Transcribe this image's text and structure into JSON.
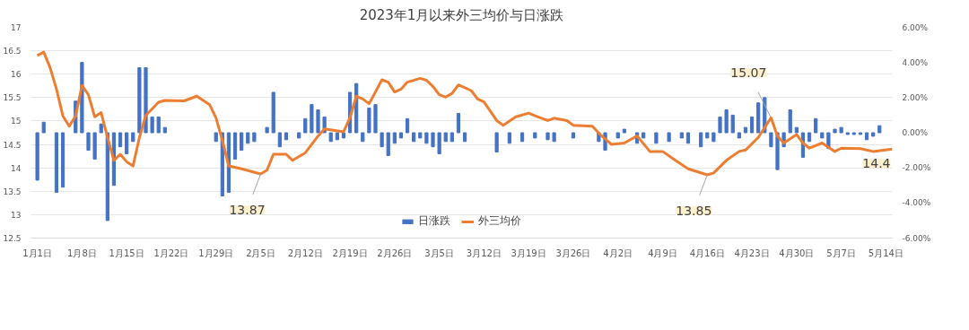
{
  "chart_data": {
    "type": "line",
    "title": "2023年1月以来外三均价与日涨跌",
    "xlim": [
      "2022-12-31",
      "2023-05-15"
    ],
    "xticks": [
      {
        "value": "2023-01-01",
        "label": "1月1日"
      },
      {
        "value": "2023-01-08",
        "label": "1月8日"
      },
      {
        "value": "2023-01-15",
        "label": "1月15日"
      },
      {
        "value": "2023-01-22",
        "label": "1月22日"
      },
      {
        "value": "2023-01-29",
        "label": "1月29日"
      },
      {
        "value": "2023-02-05",
        "label": "2月5日"
      },
      {
        "value": "2023-02-12",
        "label": "2月12日"
      },
      {
        "value": "2023-02-19",
        "label": "2月19日"
      },
      {
        "value": "2023-02-26",
        "label": "2月26日"
      },
      {
        "value": "2023-03-05",
        "label": "3月5日"
      },
      {
        "value": "2023-03-12",
        "label": "3月12日"
      },
      {
        "value": "2023-03-19",
        "label": "3月19日"
      },
      {
        "value": "2023-03-26",
        "label": "3月26日"
      },
      {
        "value": "2023-04-02",
        "label": "4月2日"
      },
      {
        "value": "2023-04-09",
        "label": "4月9日"
      },
      {
        "value": "2023-04-16",
        "label": "4月16日"
      },
      {
        "value": "2023-04-23",
        "label": "4月23日"
      },
      {
        "value": "2023-04-30",
        "label": "4月30日"
      },
      {
        "value": "2023-05-07",
        "label": "5月7日"
      },
      {
        "value": "2023-05-14",
        "label": "5月14日"
      }
    ],
    "ylim": [
      12.5,
      17
    ],
    "yticks": [
      12.5,
      13,
      13.5,
      14,
      14.5,
      15,
      15.5,
      16,
      16.5,
      17
    ],
    "y2lim": [
      -6,
      6
    ],
    "y2ticks": [
      {
        "value": -6,
        "label": "-6.00%"
      },
      {
        "value": -4,
        "label": "-4.00%"
      },
      {
        "value": -2,
        "label": "-2.00%"
      },
      {
        "value": 0,
        "label": "0.00%"
      },
      {
        "value": 2,
        "label": "2.00%"
      },
      {
        "value": 4,
        "label": "4.00%"
      },
      {
        "value": 6,
        "label": "6.00%"
      }
    ],
    "grid": "y",
    "legend": "bottom",
    "marker": "none",
    "line_style": "solid",
    "annotations": [
      {
        "text": "13.87",
        "x": "2023-02-05",
        "y": 13.87
      },
      {
        "text": "13.85",
        "x": "2023-04-16",
        "y": 13.85
      },
      {
        "text": "15.07",
        "x": "2023-04-26",
        "y": 15.07
      },
      {
        "text": "14.4",
        "x": "2023-05-15",
        "y": 14.4
      }
    ],
    "series": [
      {
        "name": "日涨跌",
        "type": "bar",
        "axis": "y2",
        "color": "#4472c4",
        "x": [
          "2023-01-01",
          "2023-01-02",
          "2023-01-04",
          "2023-01-05",
          "2023-01-07",
          "2023-01-08",
          "2023-01-09",
          "2023-01-10",
          "2023-01-11",
          "2023-01-12",
          "2023-01-13",
          "2023-01-14",
          "2023-01-15",
          "2023-01-16",
          "2023-01-17",
          "2023-01-18",
          "2023-01-19",
          "2023-01-20",
          "2023-01-21",
          "2023-01-29",
          "2023-01-30",
          "2023-01-31",
          "2023-02-01",
          "2023-02-02",
          "2023-02-03",
          "2023-02-04",
          "2023-02-06",
          "2023-02-07",
          "2023-02-08",
          "2023-02-09",
          "2023-02-11",
          "2023-02-12",
          "2023-02-13",
          "2023-02-14",
          "2023-02-15",
          "2023-02-16",
          "2023-02-17",
          "2023-02-18",
          "2023-02-19",
          "2023-02-20",
          "2023-02-21",
          "2023-02-22",
          "2023-02-23",
          "2023-02-24",
          "2023-02-25",
          "2023-02-26",
          "2023-02-27",
          "2023-02-28",
          "2023-03-01",
          "2023-03-02",
          "2023-03-03",
          "2023-03-04",
          "2023-03-05",
          "2023-03-06",
          "2023-03-07",
          "2023-03-08",
          "2023-03-09",
          "2023-03-14",
          "2023-03-16",
          "2023-03-18",
          "2023-03-20",
          "2023-03-22",
          "2023-03-23",
          "2023-03-26",
          "2023-03-30",
          "2023-03-31",
          "2023-04-02",
          "2023-04-03",
          "2023-04-05",
          "2023-04-06",
          "2023-04-08",
          "2023-04-10",
          "2023-04-12",
          "2023-04-13",
          "2023-04-15",
          "2023-04-16",
          "2023-04-17",
          "2023-04-18",
          "2023-04-19",
          "2023-04-20",
          "2023-04-21",
          "2023-04-22",
          "2023-04-23",
          "2023-04-24",
          "2023-04-25",
          "2023-04-26",
          "2023-04-27",
          "2023-04-28",
          "2023-04-29",
          "2023-04-30",
          "2023-05-01",
          "2023-05-02",
          "2023-05-03",
          "2023-05-04",
          "2023-05-05",
          "2023-05-06",
          "2023-05-07",
          "2023-05-08",
          "2023-05-09",
          "2023-05-10",
          "2023-05-11",
          "2023-05-12",
          "2023-05-13"
        ],
        "values": [
          -2.7,
          0.6,
          -3.4,
          -3.1,
          1.8,
          4.0,
          -1.0,
          -1.5,
          0.5,
          -5.0,
          -3.0,
          -0.8,
          -1.2,
          -0.5,
          3.7,
          3.7,
          0.9,
          0.9,
          0.3,
          -0.5,
          -3.6,
          -3.4,
          -1.5,
          -1.0,
          -0.6,
          -0.5,
          0.3,
          2.3,
          -0.8,
          -0.4,
          -0.3,
          0.8,
          1.6,
          1.3,
          0.9,
          -0.5,
          -0.4,
          -0.3,
          2.3,
          2.8,
          -0.5,
          1.4,
          1.6,
          -0.8,
          -1.3,
          -0.6,
          -0.3,
          0.8,
          -0.5,
          -0.3,
          -0.6,
          -0.8,
          -1.2,
          -0.5,
          -0.5,
          1.1,
          -0.5,
          -1.1,
          -0.6,
          -0.5,
          -0.3,
          -0.4,
          -0.5,
          -0.3,
          -0.5,
          -1.0,
          -0.3,
          0.2,
          -0.6,
          -0.3,
          -0.6,
          -0.5,
          -0.3,
          -0.6,
          -0.8,
          -0.3,
          -0.5,
          0.9,
          1.3,
          1.0,
          -0.3,
          0.3,
          0.9,
          1.7,
          2.0,
          -0.8,
          -2.1,
          -0.8,
          1.3,
          0.3,
          -1.4,
          -0.5,
          0.8,
          -0.3,
          -0.9,
          0.2,
          0.3,
          -0.1,
          -0.1,
          -0.1,
          -0.4,
          -0.2,
          0.4
        ]
      },
      {
        "name": "外三均价",
        "color": "#ed7d31",
        "x": [
          "2023-01-01",
          "2023-01-02",
          "2023-01-03",
          "2023-01-04",
          "2023-01-05",
          "2023-01-06",
          "2023-01-07",
          "2023-01-08",
          "2023-01-09",
          "2023-01-10",
          "2023-01-11",
          "2023-01-12",
          "2023-01-13",
          "2023-01-14",
          "2023-01-15",
          "2023-01-16",
          "2023-01-17",
          "2023-01-18",
          "2023-01-20",
          "2023-01-21",
          "2023-01-24",
          "2023-01-26",
          "2023-01-28",
          "2023-01-29",
          "2023-01-30",
          "2023-01-31",
          "2023-02-02",
          "2023-02-05",
          "2023-02-06",
          "2023-02-07",
          "2023-02-09",
          "2023-02-10",
          "2023-02-12",
          "2023-02-14",
          "2023-02-15",
          "2023-02-18",
          "2023-02-19",
          "2023-02-20",
          "2023-02-21",
          "2023-02-22",
          "2023-02-23",
          "2023-02-24",
          "2023-02-25",
          "2023-02-26",
          "2023-02-27",
          "2023-02-28",
          "2023-03-02",
          "2023-03-03",
          "2023-03-04",
          "2023-03-05",
          "2023-03-06",
          "2023-03-07",
          "2023-03-08",
          "2023-03-10",
          "2023-03-11",
          "2023-03-12",
          "2023-03-14",
          "2023-03-15",
          "2023-03-17",
          "2023-03-19",
          "2023-03-20",
          "2023-03-22",
          "2023-03-23",
          "2023-03-25",
          "2023-03-26",
          "2023-03-29",
          "2023-03-30",
          "2023-04-01",
          "2023-04-03",
          "2023-04-05",
          "2023-04-07",
          "2023-04-09",
          "2023-04-11",
          "2023-04-13",
          "2023-04-16",
          "2023-04-17",
          "2023-04-19",
          "2023-04-21",
          "2023-04-22",
          "2023-04-24",
          "2023-04-26",
          "2023-04-27",
          "2023-04-28",
          "2023-04-30",
          "2023-05-01",
          "2023-05-02",
          "2023-05-04",
          "2023-05-06",
          "2023-05-07",
          "2023-05-10",
          "2023-05-12",
          "2023-05-15"
        ],
        "values": [
          16.4,
          16.47,
          16.14,
          15.68,
          15.11,
          14.89,
          15.11,
          15.76,
          15.56,
          15.09,
          15.18,
          14.65,
          14.16,
          14.29,
          14.13,
          14.04,
          14.65,
          15.12,
          15.4,
          15.44,
          15.43,
          15.53,
          15.35,
          15.07,
          14.59,
          14.04,
          13.98,
          13.87,
          13.95,
          14.29,
          14.29,
          14.16,
          14.32,
          14.68,
          14.83,
          14.77,
          15.07,
          15.53,
          15.47,
          15.37,
          15.62,
          15.88,
          15.83,
          15.62,
          15.68,
          15.83,
          15.91,
          15.87,
          15.74,
          15.56,
          15.51,
          15.59,
          15.77,
          15.65,
          15.47,
          15.41,
          15.01,
          14.91,
          15.09,
          15.17,
          15.11,
          15.01,
          15.06,
          15.01,
          14.91,
          14.89,
          14.74,
          14.5,
          14.53,
          14.68,
          14.35,
          14.35,
          14.16,
          13.98,
          13.85,
          13.89,
          14.16,
          14.35,
          14.38,
          14.65,
          15.07,
          14.68,
          14.53,
          14.71,
          14.53,
          14.42,
          14.53,
          14.35,
          14.42,
          14.41,
          14.35,
          14.4
        ]
      }
    ]
  }
}
